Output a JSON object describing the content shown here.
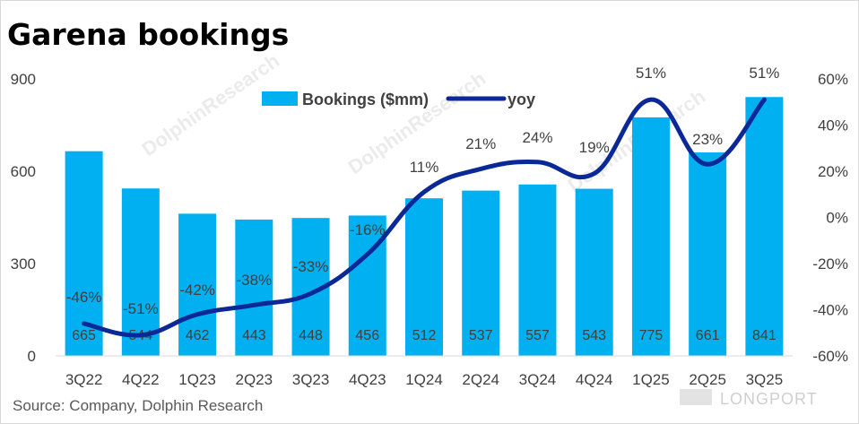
{
  "header": {
    "title": "Garena bookings"
  },
  "footer": {
    "source": "Source: Company, Dolphin Research",
    "brand": "LONGPORT",
    "watermark": "DolphinResearch"
  },
  "colors": {
    "bar": "#00b0f0",
    "line": "#0a2896",
    "grid": "#d9d9d9"
  },
  "chart_data": {
    "type": "bar",
    "title": "Garena bookings",
    "categories": [
      "3Q22",
      "4Q22",
      "1Q23",
      "2Q23",
      "3Q23",
      "4Q23",
      "1Q24",
      "2Q24",
      "3Q24",
      "4Q24",
      "1Q25",
      "2Q25",
      "3Q25"
    ],
    "series": [
      {
        "name": "Bookings ($mm)",
        "type": "bar",
        "axis": "left",
        "values": [
          665,
          544,
          462,
          443,
          448,
          456,
          512,
          537,
          557,
          543,
          775,
          661,
          841
        ],
        "labels": [
          "665",
          "544",
          "462",
          "443",
          "448",
          "456",
          "512",
          "537",
          "557",
          "543",
          "775",
          "661",
          "841"
        ]
      },
      {
        "name": "yoy",
        "type": "line",
        "axis": "right",
        "values": [
          -46,
          -51,
          -42,
          -38,
          -33,
          -16,
          11,
          21,
          24,
          19,
          51,
          23,
          51
        ],
        "labels": [
          "-46%",
          "-51%",
          "-42%",
          "-38%",
          "-33%",
          "-16%",
          "11%",
          "21%",
          "24%",
          "19%",
          "51%",
          "23%",
          "51%"
        ]
      }
    ],
    "y_left": {
      "lim": [
        0,
        900
      ],
      "ticks": [
        0,
        300,
        600,
        900
      ],
      "tick_labels": [
        "0",
        "300",
        "600",
        "900"
      ]
    },
    "y_right": {
      "lim": [
        -60,
        60
      ],
      "ticks": [
        -60,
        -40,
        -20,
        0,
        20,
        40,
        60
      ],
      "tick_labels": [
        "-60%",
        "-40%",
        "-20%",
        "0%",
        "20%",
        "40%",
        "60%"
      ]
    },
    "grid": false,
    "legend": "top-center"
  }
}
